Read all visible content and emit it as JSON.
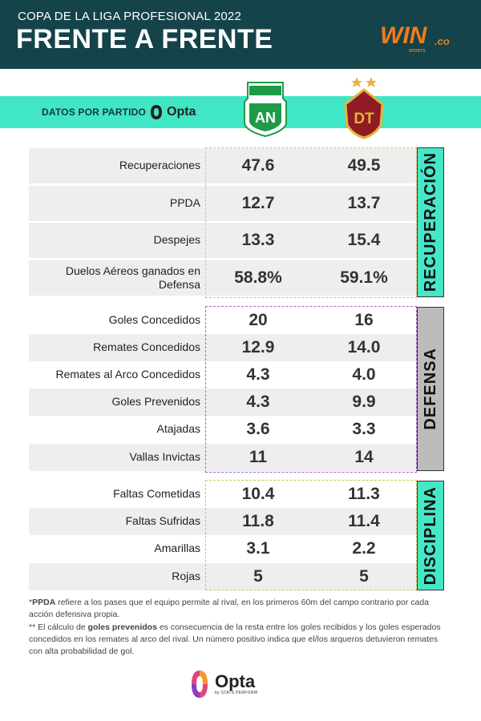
{
  "header": {
    "kicker": "COPA DE LA LIGA PROFESIONAL 2022",
    "title": "FRENTE A FRENTE",
    "brand_main": "WIN",
    "brand_suffix": ".co",
    "brand_sub": "SPORTS"
  },
  "band": {
    "label": "DATOS POR PARTIDO",
    "opta_label": "Opta"
  },
  "teams": {
    "home": {
      "crest_text": "AN"
    },
    "away": {
      "crest_text": "DT"
    }
  },
  "sections": {
    "recuperacion": {
      "title": "RECUPERACIÓN",
      "rows": [
        {
          "label": "Recuperaciones",
          "home": "47.6",
          "away": "49.5"
        },
        {
          "label": "PPDA",
          "home": "12.7",
          "away": "13.7"
        },
        {
          "label": "Despejes",
          "home": "13.3",
          "away": "15.4"
        },
        {
          "label": "Duelos Aéreos ganados en Defensa",
          "home": "58.8%",
          "away": "59.1%"
        }
      ]
    },
    "defensa": {
      "title": "DEFENSA",
      "rows": [
        {
          "label": "Goles Concedidos",
          "home": "20",
          "away": "16"
        },
        {
          "label": "Remates Concedidos",
          "home": "12.9",
          "away": "14.0"
        },
        {
          "label": "Remates al Arco Concedidos",
          "home": "4.3",
          "away": "4.0"
        },
        {
          "label": "Goles Prevenidos",
          "home": "4.3",
          "away": "9.9"
        },
        {
          "label": "Atajadas",
          "home": "3.6",
          "away": "3.3"
        },
        {
          "label": "Vallas Invictas",
          "home": "11",
          "away": "14"
        }
      ]
    },
    "disciplina": {
      "title": "DISCIPLINA",
      "rows": [
        {
          "label": "Faltas Cometidas",
          "home": "10.4",
          "away": "11.3"
        },
        {
          "label": "Faltas Sufridas",
          "home": "11.8",
          "away": "11.4"
        },
        {
          "label": "Amarillas",
          "home": "3.1",
          "away": "2.2"
        },
        {
          "label": "Rojas",
          "home": "5",
          "away": "5"
        }
      ]
    }
  },
  "notes": {
    "n1_prefix": "*",
    "n1_bold": "PPDA",
    "n1_rest": " refiere a los pases que el equipo permite al rival, en los primeros 60m del campo contrario por cada acción defensiva propia.",
    "n2_prefix": "** El cálculo de ",
    "n2_bold": "goles prevenidos",
    "n2_rest": " es consecuencia de la resta entre los goles recibidos y los goles esperados concedidos en los remates al arco del rival. Un número positivo indica que el/los arqueros detuvieron remates con alta probabilidad de gol."
  },
  "footer": {
    "opta_word": "Opta",
    "opta_sub": "by STATS PERFORM"
  },
  "colors": {
    "header_bg": "#14434a",
    "accent_teal": "#41e6c6",
    "row_gray": "#eeeeee",
    "defensa_gray": "#bbbbbb",
    "brand_orange": "#f07c1c",
    "nacional_green": "#1f9a49",
    "tolima_red": "#8f1b24",
    "tolima_gold": "#e7b23d"
  }
}
